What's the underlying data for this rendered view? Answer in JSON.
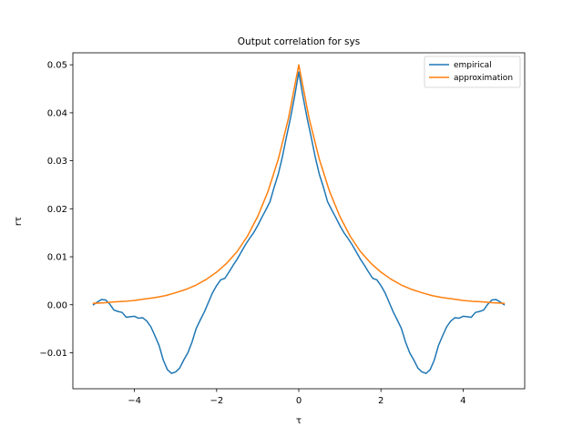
{
  "chart_data": {
    "type": "line",
    "title": "Output correlation for sys",
    "xlabel": "τ",
    "ylabel": "rτ",
    "xlim": [
      -5.5,
      5.5
    ],
    "ylim": [
      -0.0175,
      0.0525
    ],
    "x_ticks": [
      -4,
      -2,
      0,
      2,
      4
    ],
    "x_tick_labels": [
      "−4",
      "−2",
      "0",
      "2",
      "4"
    ],
    "y_ticks": [
      -0.01,
      0.0,
      0.01,
      0.02,
      0.03,
      0.04,
      0.05
    ],
    "y_tick_labels": [
      "−0.01",
      "0.00",
      "0.01",
      "0.02",
      "0.03",
      "0.04",
      "0.05"
    ],
    "grid": false,
    "legend_position": "top-right",
    "series": [
      {
        "name": "empirical",
        "color": "#1f77b4",
        "points": [
          [
            -5.0,
            0.0
          ],
          [
            -4.9,
            0.0006
          ],
          [
            -4.8,
            0.0011
          ],
          [
            -4.7,
            0.001
          ],
          [
            -4.6,
            0.0001
          ],
          [
            -4.5,
            -0.0011
          ],
          [
            -4.4,
            -0.0014
          ],
          [
            -4.3,
            -0.0016
          ],
          [
            -4.2,
            -0.0026
          ],
          [
            -4.1,
            -0.0025
          ],
          [
            -4.0,
            -0.0024
          ],
          [
            -3.9,
            -0.0028
          ],
          [
            -3.8,
            -0.0027
          ],
          [
            -3.7,
            -0.0034
          ],
          [
            -3.6,
            -0.0046
          ],
          [
            -3.5,
            -0.0065
          ],
          [
            -3.4,
            -0.0085
          ],
          [
            -3.3,
            -0.0115
          ],
          [
            -3.2,
            -0.0135
          ],
          [
            -3.1,
            -0.0143
          ],
          [
            -3.0,
            -0.014
          ],
          [
            -2.9,
            -0.0132
          ],
          [
            -2.8,
            -0.0115
          ],
          [
            -2.7,
            -0.01
          ],
          [
            -2.6,
            -0.0078
          ],
          [
            -2.5,
            -0.005
          ],
          [
            -2.4,
            -0.0032
          ],
          [
            -2.3,
            -0.0015
          ],
          [
            -2.2,
            0.0005
          ],
          [
            -2.1,
            0.0025
          ],
          [
            -2.0,
            0.004
          ],
          [
            -1.9,
            0.0052
          ],
          [
            -1.8,
            0.0055
          ],
          [
            -1.7,
            0.0068
          ],
          [
            -1.6,
            0.0082
          ],
          [
            -1.5,
            0.0095
          ],
          [
            -1.4,
            0.011
          ],
          [
            -1.3,
            0.0125
          ],
          [
            -1.2,
            0.0138
          ],
          [
            -1.1,
            0.015
          ],
          [
            -1.0,
            0.0165
          ],
          [
            -0.9,
            0.0182
          ],
          [
            -0.8,
            0.0198
          ],
          [
            -0.7,
            0.0215
          ],
          [
            -0.6,
            0.0245
          ],
          [
            -0.5,
            0.0272
          ],
          [
            -0.4,
            0.0308
          ],
          [
            -0.3,
            0.035
          ],
          [
            -0.2,
            0.039
          ],
          [
            -0.1,
            0.0435
          ],
          [
            0.0,
            0.0485
          ],
          [
            0.1,
            0.0435
          ],
          [
            0.2,
            0.039
          ],
          [
            0.3,
            0.035
          ],
          [
            0.4,
            0.0308
          ],
          [
            0.5,
            0.0272
          ],
          [
            0.6,
            0.0245
          ],
          [
            0.7,
            0.0215
          ],
          [
            0.8,
            0.0198
          ],
          [
            0.9,
            0.0182
          ],
          [
            1.0,
            0.0165
          ],
          [
            1.1,
            0.015
          ],
          [
            1.2,
            0.0138
          ],
          [
            1.3,
            0.0125
          ],
          [
            1.4,
            0.011
          ],
          [
            1.5,
            0.0095
          ],
          [
            1.6,
            0.0082
          ],
          [
            1.7,
            0.0068
          ],
          [
            1.8,
            0.0055
          ],
          [
            1.9,
            0.0052
          ],
          [
            2.0,
            0.004
          ],
          [
            2.1,
            0.0025
          ],
          [
            2.2,
            0.0005
          ],
          [
            2.3,
            -0.0015
          ],
          [
            2.4,
            -0.0032
          ],
          [
            2.5,
            -0.005
          ],
          [
            2.6,
            -0.0078
          ],
          [
            2.7,
            -0.01
          ],
          [
            2.8,
            -0.0115
          ],
          [
            2.9,
            -0.0132
          ],
          [
            3.0,
            -0.014
          ],
          [
            3.1,
            -0.0143
          ],
          [
            3.2,
            -0.0135
          ],
          [
            3.3,
            -0.0115
          ],
          [
            3.4,
            -0.0085
          ],
          [
            3.5,
            -0.0065
          ],
          [
            3.6,
            -0.0046
          ],
          [
            3.7,
            -0.0034
          ],
          [
            3.8,
            -0.0027
          ],
          [
            3.9,
            -0.0028
          ],
          [
            4.0,
            -0.0024
          ],
          [
            4.1,
            -0.0025
          ],
          [
            4.2,
            -0.0026
          ],
          [
            4.3,
            -0.0016
          ],
          [
            4.4,
            -0.0014
          ],
          [
            4.5,
            -0.0011
          ],
          [
            4.6,
            0.0001
          ],
          [
            4.7,
            0.001
          ],
          [
            4.8,
            0.0011
          ],
          [
            4.9,
            0.0006
          ],
          [
            5.0,
            0.0
          ]
        ]
      },
      {
        "name": "approximation",
        "color": "#ff7f0e",
        "points": [
          [
            -5.0,
            0.0003
          ],
          [
            -4.75,
            0.0004
          ],
          [
            -4.5,
            0.0006
          ],
          [
            -4.25,
            0.0007
          ],
          [
            -4.0,
            0.0009
          ],
          [
            -3.75,
            0.0012
          ],
          [
            -3.5,
            0.0015
          ],
          [
            -3.25,
            0.0019
          ],
          [
            -3.0,
            0.0025
          ],
          [
            -2.75,
            0.0032
          ],
          [
            -2.5,
            0.0041
          ],
          [
            -2.25,
            0.0053
          ],
          [
            -2.0,
            0.0068
          ],
          [
            -1.75,
            0.0087
          ],
          [
            -1.5,
            0.0111
          ],
          [
            -1.25,
            0.0143
          ],
          [
            -1.0,
            0.0184
          ],
          [
            -0.75,
            0.0236
          ],
          [
            -0.5,
            0.0303
          ],
          [
            -0.25,
            0.0389
          ],
          [
            0.0,
            0.05
          ],
          [
            0.25,
            0.0389
          ],
          [
            0.5,
            0.0303
          ],
          [
            0.75,
            0.0236
          ],
          [
            1.0,
            0.0184
          ],
          [
            1.25,
            0.0143
          ],
          [
            1.5,
            0.0111
          ],
          [
            1.75,
            0.0087
          ],
          [
            2.0,
            0.0068
          ],
          [
            2.25,
            0.0053
          ],
          [
            2.5,
            0.0041
          ],
          [
            2.75,
            0.0032
          ],
          [
            3.0,
            0.0025
          ],
          [
            3.25,
            0.0019
          ],
          [
            3.5,
            0.0015
          ],
          [
            3.75,
            0.0012
          ],
          [
            4.0,
            0.0009
          ],
          [
            4.25,
            0.0007
          ],
          [
            4.5,
            0.0006
          ],
          [
            4.75,
            0.0004
          ],
          [
            5.0,
            0.0003
          ]
        ]
      }
    ]
  }
}
